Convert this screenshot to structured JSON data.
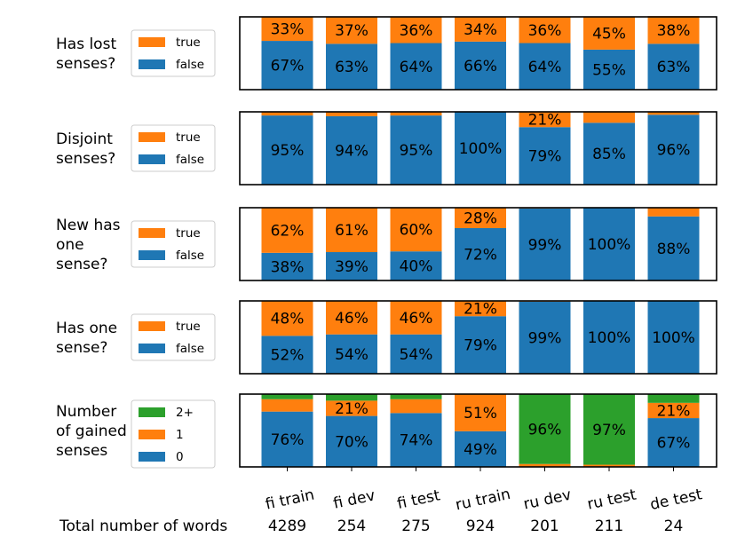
{
  "colors": {
    "true": "#ff7f0e",
    "false": "#1f77b4",
    "two_plus": "#2ca02c",
    "one": "#ff7f0e",
    "zero": "#1f77b4"
  },
  "chart_data": {
    "type": "bar",
    "stacked": true,
    "categories": [
      "fi train",
      "fi dev",
      "fi test",
      "ru train",
      "ru dev",
      "ru test",
      "de test"
    ],
    "total_label": "Total number of words",
    "totals": [
      "4289",
      "254",
      "275",
      "924",
      "201",
      "211",
      "24"
    ],
    "ylim": [
      0,
      100
    ],
    "panels": [
      {
        "title": [
          "Has lost",
          "senses?"
        ],
        "legend": [
          "true",
          "false"
        ],
        "series": [
          {
            "name": "false",
            "color": "#1f77b4",
            "values": [
              67,
              63,
              64,
              66,
              64,
              55,
              63
            ],
            "labels": [
              "67%",
              "63%",
              "64%",
              "66%",
              "64%",
              "55%",
              "63%"
            ]
          },
          {
            "name": "true",
            "color": "#ff7f0e",
            "values": [
              33,
              37,
              36,
              34,
              36,
              45,
              38
            ],
            "labels": [
              "33%",
              "37%",
              "36%",
              "34%",
              "36%",
              "45%",
              "38%"
            ]
          }
        ]
      },
      {
        "title": [
          "Disjoint",
          "senses?"
        ],
        "legend": [
          "true",
          "false"
        ],
        "series": [
          {
            "name": "false",
            "color": "#1f77b4",
            "values": [
              95,
              94,
              95,
              100,
              79,
              85,
              96
            ],
            "labels": [
              "95%",
              "94%",
              "95%",
              "100%",
              "79%",
              "85%",
              "96%"
            ]
          },
          {
            "name": "true",
            "color": "#ff7f0e",
            "values": [
              5,
              6,
              5,
              0,
              21,
              15,
              4
            ],
            "labels": [
              "",
              "",
              "",
              "",
              "21%",
              "",
              ""
            ]
          }
        ]
      },
      {
        "title": [
          "New has",
          "one",
          "sense?"
        ],
        "legend": [
          "true",
          "false"
        ],
        "series": [
          {
            "name": "false",
            "color": "#1f77b4",
            "values": [
              38,
              39,
              40,
              72,
              99,
              100,
              88
            ],
            "labels": [
              "38%",
              "39%",
              "40%",
              "72%",
              "99%",
              "100%",
              "88%"
            ]
          },
          {
            "name": "true",
            "color": "#ff7f0e",
            "values": [
              62,
              61,
              60,
              28,
              1,
              0,
              12
            ],
            "labels": [
              "62%",
              "61%",
              "60%",
              "28%",
              "",
              "",
              ""
            ]
          }
        ]
      },
      {
        "title": [
          "Has one",
          "sense?"
        ],
        "legend": [
          "true",
          "false"
        ],
        "series": [
          {
            "name": "false",
            "color": "#1f77b4",
            "values": [
              52,
              54,
              54,
              79,
              99,
              100,
              100
            ],
            "labels": [
              "52%",
              "54%",
              "54%",
              "79%",
              "99%",
              "100%",
              "100%"
            ]
          },
          {
            "name": "true",
            "color": "#ff7f0e",
            "values": [
              48,
              46,
              46,
              21,
              1,
              0,
              0
            ],
            "labels": [
              "48%",
              "46%",
              "46%",
              "21%",
              "",
              "",
              ""
            ]
          }
        ]
      },
      {
        "title": [
          "Number",
          "of gained",
          "senses"
        ],
        "legend": [
          "2+",
          "1",
          "0"
        ],
        "series": [
          {
            "name": "0",
            "color": "#1f77b4",
            "values": [
              76,
              70,
              74,
              49,
              0,
              0,
              67
            ],
            "labels": [
              "76%",
              "70%",
              "74%",
              "49%",
              "",
              "",
              "67%"
            ]
          },
          {
            "name": "1",
            "color": "#ff7f0e",
            "values": [
              17,
              21,
              19,
              51,
              4,
              3,
              21
            ],
            "labels": [
              "",
              "21%",
              "",
              "51%",
              "",
              "",
              "21%"
            ]
          },
          {
            "name": "2+",
            "color": "#2ca02c",
            "values": [
              7,
              9,
              7,
              0,
              96,
              97,
              12
            ],
            "labels": [
              "",
              "",
              "",
              "",
              "96%",
              "97%",
              ""
            ]
          }
        ]
      }
    ]
  }
}
